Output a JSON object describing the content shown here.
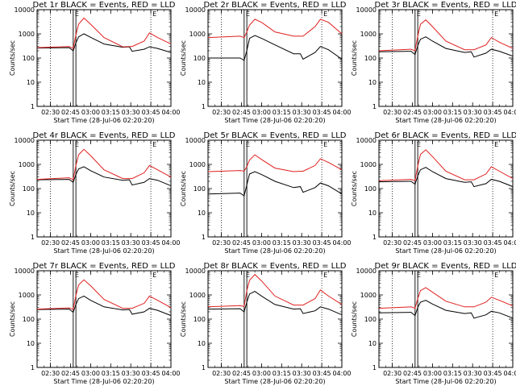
{
  "chart_data": [
    {
      "type": "line",
      "title": "Det 1r BLACK = Events, RED = LLD",
      "xlabel": "Start Time (28-Jul-06 02:20:20)",
      "ylabel": "Counts/sec",
      "ylog": true,
      "ylim": [
        1,
        10000
      ],
      "xlim": [
        "02:20",
        "04:00"
      ],
      "x_tick_labels": [
        "02:30",
        "02:45",
        "03:00",
        "03:15",
        "03:30",
        "03:45",
        "04:00"
      ],
      "y_tick_labels": [
        "1",
        "10",
        "100",
        "1000",
        "10000"
      ],
      "vlines_dotted": [
        "02:30",
        "03:45"
      ],
      "vlines_solid": [
        "02:47",
        "02:49"
      ],
      "marker_labels": [
        "E",
        "E"
      ],
      "series": [
        {
          "color": "#000000",
          "x": [
            "02:20",
            "02:44",
            "02:47",
            "02:49",
            "02:51",
            "02:55",
            "03:00",
            "03:10",
            "03:24",
            "03:29",
            "03:31",
            "03:40",
            "03:44",
            "03:50",
            "04:00"
          ],
          "y": [
            260,
            270,
            200,
            420,
            750,
            1000,
            720,
            380,
            280,
            290,
            190,
            230,
            290,
            250,
            170
          ]
        },
        {
          "color": "#e02020",
          "x": [
            "02:20",
            "02:44",
            "02:47",
            "02:49",
            "02:51",
            "02:55",
            "03:00",
            "03:10",
            "03:24",
            "03:29",
            "03:31",
            "03:40",
            "03:44",
            "03:50",
            "04:00"
          ],
          "y": [
            270,
            300,
            250,
            900,
            2500,
            4500,
            2500,
            700,
            290,
            300,
            300,
            500,
            1100,
            700,
            380
          ]
        }
      ]
    },
    {
      "type": "line",
      "title": "Det 2r BLACK = Events, RED = LLD",
      "xlabel": "Start Time (28-Jul-06 02:20:20)",
      "ylabel": "Counts/sec",
      "ylog": true,
      "ylim": [
        1,
        10000
      ],
      "xlim": [
        "02:20",
        "04:00"
      ],
      "x_tick_labels": [
        "02:30",
        "02:45",
        "03:00",
        "03:15",
        "03:30",
        "03:45",
        "04:00"
      ],
      "y_tick_labels": [
        "1",
        "10",
        "100",
        "1000",
        "10000"
      ],
      "vlines_dotted": [
        "02:30",
        "03:45"
      ],
      "vlines_solid": [
        "02:47",
        "02:49"
      ],
      "marker_labels": [
        "E",
        "E"
      ],
      "series": [
        {
          "color": "#000000",
          "x": [
            "02:20",
            "02:44",
            "02:47",
            "02:49",
            "02:51",
            "02:55",
            "03:00",
            "03:10",
            "03:24",
            "03:29",
            "03:31",
            "03:40",
            "03:44",
            "03:50",
            "04:00"
          ],
          "y": [
            100,
            100,
            80,
            200,
            650,
            850,
            650,
            350,
            150,
            150,
            90,
            170,
            300,
            220,
            90
          ]
        },
        {
          "color": "#e02020",
          "x": [
            "02:20",
            "02:44",
            "02:47",
            "02:49",
            "02:51",
            "02:55",
            "03:00",
            "03:10",
            "03:24",
            "03:29",
            "03:31",
            "03:40",
            "03:44",
            "03:50",
            "04:00"
          ],
          "y": [
            700,
            800,
            700,
            1200,
            2300,
            4000,
            3000,
            1200,
            800,
            800,
            800,
            2000,
            4000,
            3000,
            1000
          ]
        }
      ]
    },
    {
      "type": "line",
      "title": "Det 3r BLACK = Events, RED = LLD",
      "xlabel": "Start Time (28-Jul-06 02:20:20)",
      "ylabel": "Counts/sec",
      "ylog": true,
      "ylim": [
        1,
        10000
      ],
      "xlim": [
        "02:20",
        "04:00"
      ],
      "x_tick_labels": [
        "02:30",
        "02:45",
        "03:00",
        "03:15",
        "03:30",
        "03:45",
        "04:00"
      ],
      "y_tick_labels": [
        "1",
        "10",
        "100",
        "1000",
        "10000"
      ],
      "vlines_dotted": [
        "02:30",
        "03:45"
      ],
      "vlines_solid": [
        "02:47",
        "02:49"
      ],
      "marker_labels": [
        "E",
        "E"
      ],
      "series": [
        {
          "color": "#000000",
          "x": [
            "02:20",
            "02:44",
            "02:47",
            "02:49",
            "02:51",
            "02:55",
            "03:00",
            "03:10",
            "03:24",
            "03:29",
            "03:31",
            "03:40",
            "03:44",
            "03:50",
            "04:00"
          ],
          "y": [
            180,
            190,
            140,
            320,
            600,
            750,
            500,
            250,
            170,
            180,
            110,
            160,
            230,
            190,
            120
          ]
        },
        {
          "color": "#e02020",
          "x": [
            "02:20",
            "02:44",
            "02:47",
            "02:49",
            "02:51",
            "02:55",
            "03:00",
            "03:10",
            "03:24",
            "03:29",
            "03:31",
            "03:40",
            "03:44",
            "03:50",
            "04:00"
          ],
          "y": [
            200,
            230,
            200,
            800,
            2500,
            3800,
            2000,
            500,
            220,
            220,
            220,
            350,
            700,
            450,
            250
          ]
        }
      ]
    },
    {
      "type": "line",
      "title": "Det 4r BLACK = Events, RED = LLD",
      "xlabel": "Start Time (28-Jul-06 02:20:20)",
      "ylabel": "Counts/sec",
      "ylog": true,
      "ylim": [
        1,
        10000
      ],
      "xlim": [
        "02:20",
        "04:00"
      ],
      "x_tick_labels": [
        "02:30",
        "02:45",
        "03:00",
        "03:15",
        "03:30",
        "03:45",
        "04:00"
      ],
      "y_tick_labels": [
        "1",
        "10",
        "100",
        "1000",
        "10000"
      ],
      "vlines_dotted": [
        "02:30",
        "03:45"
      ],
      "vlines_solid": [
        "02:47",
        "02:49"
      ],
      "marker_labels": [
        "E",
        "E"
      ],
      "series": [
        {
          "color": "#000000",
          "x": [
            "02:20",
            "02:44",
            "02:47",
            "02:49",
            "02:51",
            "02:55",
            "03:00",
            "03:10",
            "03:24",
            "03:29",
            "03:31",
            "03:40",
            "03:44",
            "03:50",
            "04:00"
          ],
          "y": [
            230,
            240,
            180,
            380,
            650,
            800,
            550,
            300,
            220,
            230,
            140,
            180,
            260,
            220,
            130
          ]
        },
        {
          "color": "#e02020",
          "x": [
            "02:20",
            "02:44",
            "02:47",
            "02:49",
            "02:51",
            "02:55",
            "03:00",
            "03:10",
            "03:24",
            "03:29",
            "03:31",
            "03:40",
            "03:44",
            "03:50",
            "04:00"
          ],
          "y": [
            240,
            280,
            230,
            900,
            2500,
            4200,
            2300,
            600,
            260,
            260,
            260,
            450,
            900,
            600,
            300
          ]
        }
      ]
    },
    {
      "type": "line",
      "title": "Det 5r BLACK = Events, RED = LLD",
      "xlabel": "Start Time (28-Jul-06 02:20:20)",
      "ylabel": "Counts/sec",
      "ylog": true,
      "ylim": [
        1,
        10000
      ],
      "xlim": [
        "02:20",
        "04:00"
      ],
      "x_tick_labels": [
        "02:30",
        "02:45",
        "03:00",
        "03:15",
        "03:30",
        "03:45",
        "04:00"
      ],
      "y_tick_labels": [
        "1",
        "10",
        "100",
        "1000",
        "10000"
      ],
      "vlines_dotted": [
        "02:30",
        "03:45"
      ],
      "vlines_solid": [
        "02:47",
        "02:49"
      ],
      "marker_labels": [
        "E",
        "E"
      ],
      "series": [
        {
          "color": "#000000",
          "x": [
            "02:20",
            "02:44",
            "02:47",
            "02:49",
            "02:51",
            "02:55",
            "03:00",
            "03:10",
            "03:24",
            "03:29",
            "03:31",
            "03:40",
            "03:44",
            "03:50",
            "04:00"
          ],
          "y": [
            60,
            65,
            50,
            140,
            400,
            500,
            380,
            200,
            110,
            120,
            70,
            110,
            170,
            130,
            60
          ]
        },
        {
          "color": "#e02020",
          "x": [
            "02:20",
            "02:44",
            "02:47",
            "02:49",
            "02:51",
            "02:55",
            "03:00",
            "03:10",
            "03:24",
            "03:29",
            "03:31",
            "03:40",
            "03:44",
            "03:50",
            "04:00"
          ],
          "y": [
            500,
            560,
            520,
            800,
            1500,
            2500,
            1600,
            700,
            500,
            520,
            520,
            900,
            1700,
            1200,
            600
          ]
        }
      ]
    },
    {
      "type": "line",
      "title": "Det 6r BLACK = Events, RED = LLD",
      "xlabel": "Start Time (28-Jul-06 02:20:20)",
      "ylabel": "Counts/sec",
      "ylog": true,
      "ylim": [
        1,
        10000
      ],
      "xlim": [
        "02:20",
        "04:00"
      ],
      "x_tick_labels": [
        "02:30",
        "02:45",
        "03:00",
        "03:15",
        "03:30",
        "03:45",
        "04:00"
      ],
      "y_tick_labels": [
        "1",
        "10",
        "100",
        "1000",
        "10000"
      ],
      "vlines_dotted": [
        "02:30",
        "03:45"
      ],
      "vlines_solid": [
        "02:47",
        "02:49"
      ],
      "marker_labels": [
        "E",
        "E"
      ],
      "series": [
        {
          "color": "#000000",
          "x": [
            "02:20",
            "02:44",
            "02:47",
            "02:49",
            "02:51",
            "02:55",
            "03:00",
            "03:10",
            "03:24",
            "03:29",
            "03:31",
            "03:40",
            "03:44",
            "03:50",
            "04:00"
          ],
          "y": [
            190,
            200,
            150,
            330,
            600,
            750,
            500,
            260,
            180,
            190,
            120,
            160,
            240,
            200,
            120
          ]
        },
        {
          "color": "#e02020",
          "x": [
            "02:20",
            "02:44",
            "02:47",
            "02:49",
            "02:51",
            "02:55",
            "03:00",
            "03:10",
            "03:24",
            "03:29",
            "03:31",
            "03:40",
            "03:44",
            "03:50",
            "04:00"
          ],
          "y": [
            210,
            240,
            210,
            850,
            2600,
            4000,
            2100,
            520,
            230,
            230,
            230,
            400,
            800,
            520,
            260
          ]
        }
      ]
    },
    {
      "type": "line",
      "title": "Det 7r BLACK = Events, RED = LLD",
      "xlabel": "Start Time (28-Jul-06 02:20:20)",
      "ylabel": "Counts/sec",
      "ylog": true,
      "ylim": [
        1,
        10000
      ],
      "xlim": [
        "02:20",
        "04:00"
      ],
      "x_tick_labels": [
        "02:30",
        "02:45",
        "03:00",
        "03:15",
        "03:30",
        "03:45",
        "04:00"
      ],
      "y_tick_labels": [
        "1",
        "10",
        "100",
        "1000",
        "10000"
      ],
      "vlines_dotted": [
        "02:30",
        "03:45"
      ],
      "vlines_solid": [
        "02:47",
        "02:49"
      ],
      "marker_labels": [
        "E",
        "E"
      ],
      "series": [
        {
          "color": "#000000",
          "x": [
            "02:20",
            "02:44",
            "02:47",
            "02:49",
            "02:51",
            "02:55",
            "03:00",
            "03:10",
            "03:24",
            "03:29",
            "03:31",
            "03:40",
            "03:44",
            "03:50",
            "04:00"
          ],
          "y": [
            250,
            260,
            190,
            400,
            700,
            900,
            600,
            320,
            240,
            250,
            160,
            200,
            280,
            230,
            140
          ]
        },
        {
          "color": "#e02020",
          "x": [
            "02:20",
            "02:44",
            "02:47",
            "02:49",
            "02:51",
            "02:55",
            "03:00",
            "03:10",
            "03:24",
            "03:29",
            "03:31",
            "03:40",
            "03:44",
            "03:50",
            "04:00"
          ],
          "y": [
            260,
            290,
            250,
            950,
            2600,
            4200,
            2400,
            650,
            280,
            280,
            280,
            450,
            900,
            600,
            300
          ]
        }
      ]
    },
    {
      "type": "line",
      "title": "Det 8r BLACK = Events, RED = LLD",
      "xlabel": "Start Time (28-Jul-06 02:20:20)",
      "ylabel": "Counts/sec",
      "ylog": true,
      "ylim": [
        1,
        10000
      ],
      "xlim": [
        "02:20",
        "04:00"
      ],
      "x_tick_labels": [
        "02:30",
        "02:45",
        "03:00",
        "03:15",
        "03:30",
        "03:45",
        "04:00"
      ],
      "y_tick_labels": [
        "1",
        "10",
        "100",
        "1000",
        "10000"
      ],
      "vlines_dotted": [
        "02:30",
        "03:45"
      ],
      "vlines_solid": [
        "02:47",
        "02:49"
      ],
      "marker_labels": [
        "E",
        "E"
      ],
      "series": [
        {
          "color": "#000000",
          "x": [
            "02:20",
            "02:44",
            "02:47",
            "02:49",
            "02:51",
            "02:55",
            "03:00",
            "03:10",
            "03:24",
            "03:29",
            "03:31",
            "03:40",
            "03:44",
            "03:50",
            "04:00"
          ],
          "y": [
            260,
            270,
            200,
            500,
            1100,
            1400,
            900,
            400,
            260,
            270,
            170,
            220,
            320,
            260,
            150
          ]
        },
        {
          "color": "#e02020",
          "x": [
            "02:20",
            "02:44",
            "02:47",
            "02:49",
            "02:51",
            "02:55",
            "03:00",
            "03:10",
            "03:24",
            "03:29",
            "03:31",
            "03:40",
            "03:44",
            "03:50",
            "04:00"
          ],
          "y": [
            320,
            360,
            330,
            1500,
            4000,
            7000,
            3800,
            900,
            380,
            380,
            380,
            700,
            1600,
            900,
            400
          ]
        }
      ]
    },
    {
      "type": "line",
      "title": "Det 9r BLACK = Events, RED = LLD",
      "xlabel": "Start Time (28-Jul-06 02:20:20)",
      "ylabel": "Counts/sec",
      "ylog": true,
      "ylim": [
        1,
        10000
      ],
      "xlim": [
        "02:20",
        "04:00"
      ],
      "x_tick_labels": [
        "02:30",
        "02:45",
        "03:00",
        "03:15",
        "03:30",
        "03:45",
        "04:00"
      ],
      "y_tick_labels": [
        "1",
        "10",
        "100",
        "1000",
        "10000"
      ],
      "vlines_dotted": [
        "02:30",
        "03:45"
      ],
      "vlines_solid": [
        "02:47",
        "02:49"
      ],
      "marker_labels": [
        "E",
        "E"
      ],
      "series": [
        {
          "color": "#000000",
          "x": [
            "02:20",
            "02:44",
            "02:47",
            "02:49",
            "02:51",
            "02:55",
            "03:00",
            "03:10",
            "03:24",
            "03:29",
            "03:31",
            "03:40",
            "03:44",
            "03:50",
            "04:00"
          ],
          "y": [
            180,
            190,
            140,
            300,
            500,
            600,
            420,
            230,
            170,
            180,
            110,
            150,
            210,
            180,
            110
          ]
        },
        {
          "color": "#e02020",
          "x": [
            "02:20",
            "02:44",
            "02:47",
            "02:49",
            "02:51",
            "02:55",
            "03:00",
            "03:10",
            "03:24",
            "03:29",
            "03:31",
            "03:40",
            "03:44",
            "03:50",
            "04:00"
          ],
          "y": [
            280,
            320,
            280,
            700,
            1500,
            2000,
            1300,
            550,
            320,
            320,
            320,
            500,
            800,
            600,
            350
          ]
        }
      ]
    }
  ]
}
